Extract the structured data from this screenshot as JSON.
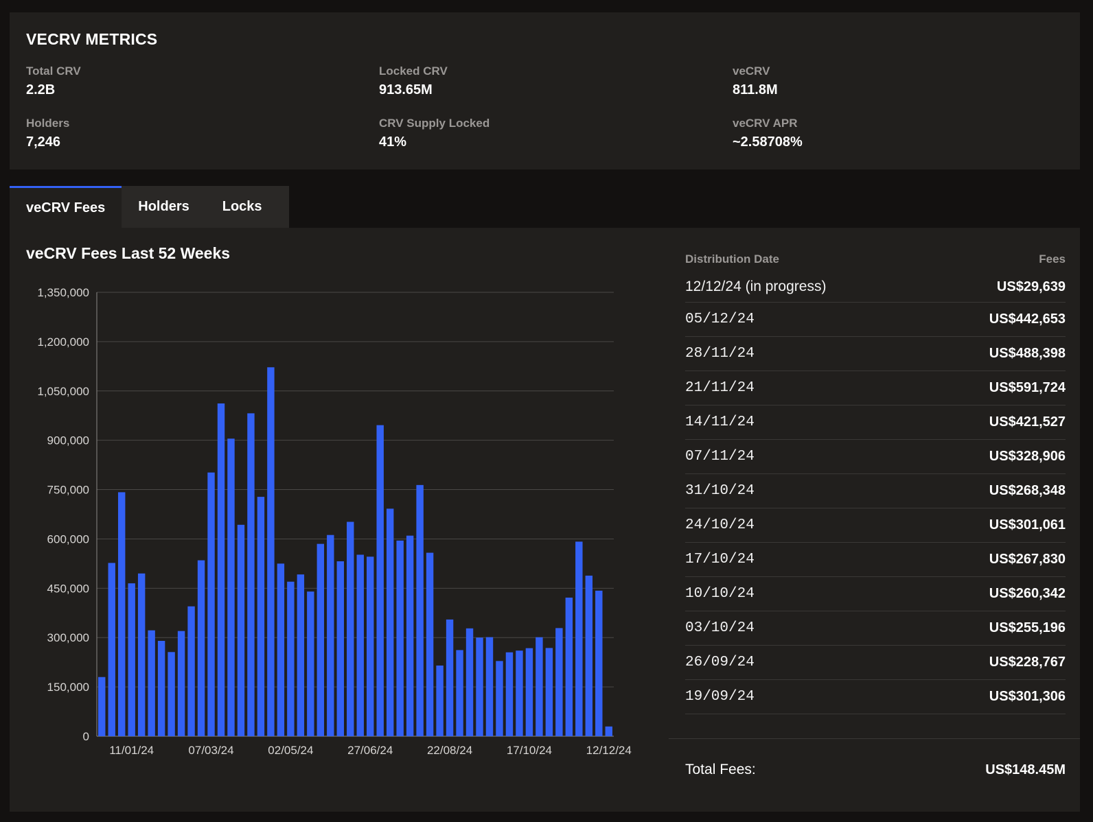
{
  "metrics": {
    "title": "VECRV METRICS",
    "items": [
      {
        "label": "Total CRV",
        "value": "2.2B"
      },
      {
        "label": "Locked CRV",
        "value": "913.65M"
      },
      {
        "label": "veCRV",
        "value": "811.8M"
      },
      {
        "label": "Holders",
        "value": "7,246"
      },
      {
        "label": "CRV Supply Locked",
        "value": "41%"
      },
      {
        "label": "veCRV APR",
        "value": "~2.58708%"
      }
    ]
  },
  "tabs": [
    {
      "label": "veCRV Fees",
      "active": true
    },
    {
      "label": "Holders",
      "active": false
    },
    {
      "label": "Locks",
      "active": false
    }
  ],
  "chart": {
    "title": "veCRV Fees Last 52 Weeks"
  },
  "chart_data": {
    "type": "bar",
    "title": "veCRV Fees Last 52 Weeks",
    "bar_color": "#3361f5",
    "ylim": [
      0,
      1350000
    ],
    "yticks": [
      "0",
      "150,000",
      "300,000",
      "450,000",
      "600,000",
      "750,000",
      "900,000",
      "1,050,000",
      "1,200,000",
      "1,350,000"
    ],
    "xtick_labels": [
      "11/01/24",
      "07/03/24",
      "02/05/24",
      "27/06/24",
      "22/08/24",
      "17/10/24",
      "12/12/24"
    ],
    "grid": true,
    "values": [
      180000,
      527000,
      742000,
      465000,
      495000,
      322000,
      290000,
      256000,
      320000,
      395000,
      535000,
      802000,
      1012000,
      905000,
      643000,
      982000,
      728000,
      1122000,
      525000,
      470000,
      492000,
      440000,
      585000,
      612000,
      532000,
      652000,
      552000,
      546000,
      946000,
      692000,
      595000,
      610000,
      764000,
      558000,
      215000,
      355000,
      262000,
      328000,
      300000,
      301306,
      228767,
      255196,
      260342,
      267830,
      301061,
      268348,
      328906,
      421527,
      591724,
      488398,
      442653,
      29639
    ]
  },
  "table": {
    "col_date": "Distribution Date",
    "col_fees": "Fees",
    "rows": [
      {
        "date": "12/12/24 (in progress)",
        "fee": "US$29,639"
      },
      {
        "date": "05/12/24",
        "fee": "US$442,653"
      },
      {
        "date": "28/11/24",
        "fee": "US$488,398"
      },
      {
        "date": "21/11/24",
        "fee": "US$591,724"
      },
      {
        "date": "14/11/24",
        "fee": "US$421,527"
      },
      {
        "date": "07/11/24",
        "fee": "US$328,906"
      },
      {
        "date": "31/10/24",
        "fee": "US$268,348"
      },
      {
        "date": "24/10/24",
        "fee": "US$301,061"
      },
      {
        "date": "17/10/24",
        "fee": "US$267,830"
      },
      {
        "date": "10/10/24",
        "fee": "US$260,342"
      },
      {
        "date": "03/10/24",
        "fee": "US$255,196"
      },
      {
        "date": "26/09/24",
        "fee": "US$228,767"
      },
      {
        "date": "19/09/24",
        "fee": "US$301,306"
      }
    ],
    "total_label": "Total Fees:",
    "total_value": "US$148.45M"
  }
}
